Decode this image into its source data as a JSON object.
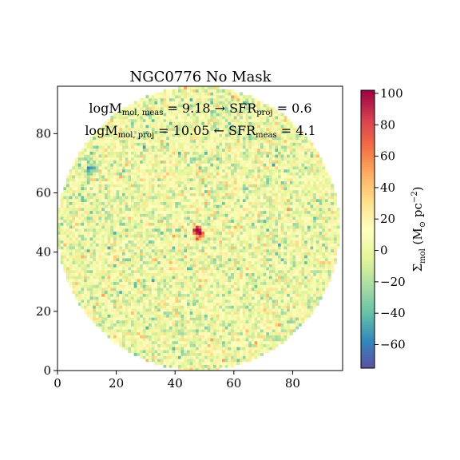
{
  "chart_data": {
    "type": "heatmap",
    "title": "NGC0776 No Mask",
    "annotations": [
      {
        "label_main": "logM",
        "label_sub": "mol, meas",
        "value_text": " = 9.18 → SFR",
        "sub2": "proj",
        "value2_text": " = 0.6"
      },
      {
        "label_main": "logM",
        "label_sub": "mol, proj",
        "value_text": " = 10.05 ← SFR",
        "sub2": "meas",
        "value2_text": " = 4.1"
      }
    ],
    "xlim": [
      0,
      97
    ],
    "ylim": [
      0,
      96
    ],
    "x_ticks": [
      0,
      20,
      40,
      60,
      80
    ],
    "y_ticks": [
      0,
      20,
      40,
      60,
      80
    ],
    "grid_size": [
      97,
      96
    ],
    "mask": {
      "type": "circle",
      "center": [
        48,
        48
      ],
      "radius": 48
    },
    "colormap": "Spectral_r",
    "colorbar": {
      "min": -75,
      "max": 102,
      "ticks": [
        -60,
        -40,
        -20,
        0,
        20,
        40,
        60,
        80,
        100
      ],
      "label_main": "Σ",
      "label_sub": "mol",
      "label_unit": "(M",
      "label_unit_sub": "⊙",
      "label_unit_rest": " pc",
      "label_unit_sup": "−2",
      "label_close": ")"
    },
    "features": [
      {
        "x": 47,
        "y": 47,
        "value": 100
      },
      {
        "x": 48,
        "y": 45,
        "value": 55
      },
      {
        "x": 11,
        "y": 68,
        "value": -60
      }
    ],
    "noise_sigma": 20
  }
}
